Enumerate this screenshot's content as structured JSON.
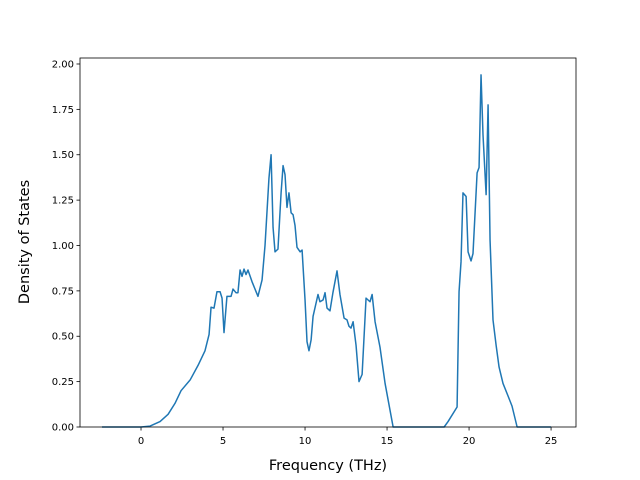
{
  "chart_data": {
    "type": "line",
    "xlabel": "Frequency (THz)",
    "ylabel": "Density of States",
    "x": [
      -2.38,
      0,
      0.55,
      1.16,
      1.65,
      2.07,
      2.44,
      3.0,
      3.48,
      3.9,
      4.15,
      4.27,
      4.45,
      4.63,
      4.82,
      4.94,
      5.06,
      5.24,
      5.49,
      5.61,
      5.79,
      5.91,
      6.04,
      6.16,
      6.28,
      6.4,
      6.52,
      6.77,
      7.13,
      7.38,
      7.56,
      7.8,
      7.93,
      8.05,
      8.17,
      8.35,
      8.54,
      8.66,
      8.78,
      8.9,
      9.02,
      9.15,
      9.27,
      9.39,
      9.51,
      9.7,
      9.82,
      10.0,
      10.12,
      10.24,
      10.37,
      10.49,
      10.79,
      10.91,
      11.1,
      11.22,
      11.34,
      11.52,
      11.7,
      11.95,
      12.13,
      12.38,
      12.56,
      12.68,
      12.8,
      12.93,
      13.11,
      13.29,
      13.48,
      13.72,
      13.96,
      14.09,
      14.27,
      14.57,
      14.88,
      15.37,
      18.48,
      18.72,
      19.27,
      19.39,
      19.51,
      19.63,
      19.82,
      19.94,
      20.12,
      20.24,
      20.49,
      20.61,
      20.73,
      20.85,
      21.04,
      21.16,
      21.28,
      21.46,
      21.65,
      21.83,
      22.07,
      22.38,
      22.62,
      22.93,
      25
    ],
    "series": [
      {
        "name": "DOS",
        "color": "#1f77b4",
        "values": [
          0,
          0,
          0.005,
          0.03,
          0.07,
          0.13,
          0.2,
          0.26,
          0.34,
          0.42,
          0.51,
          0.66,
          0.655,
          0.745,
          0.745,
          0.71,
          0.52,
          0.72,
          0.72,
          0.76,
          0.74,
          0.74,
          0.865,
          0.83,
          0.87,
          0.84,
          0.865,
          0.8,
          0.72,
          0.81,
          1.0,
          1.37,
          1.5,
          1.1,
          0.965,
          0.98,
          1.29,
          1.44,
          1.39,
          1.21,
          1.29,
          1.18,
          1.17,
          1.11,
          0.99,
          0.965,
          0.975,
          0.7,
          0.47,
          0.42,
          0.48,
          0.61,
          0.73,
          0.69,
          0.7,
          0.74,
          0.655,
          0.64,
          0.74,
          0.86,
          0.73,
          0.6,
          0.59,
          0.555,
          0.545,
          0.58,
          0.45,
          0.25,
          0.29,
          0.71,
          0.69,
          0.73,
          0.58,
          0.44,
          0.24,
          0,
          0,
          0.03,
          0.11,
          0.745,
          0.91,
          1.29,
          1.27,
          0.965,
          0.915,
          0.955,
          1.4,
          1.43,
          1.94,
          1.61,
          1.28,
          1.775,
          1.03,
          0.59,
          0.45,
          0.33,
          0.24,
          0.17,
          0.115,
          0,
          0
        ]
      }
    ],
    "xlim": [
      -3.72,
      26.52
    ],
    "ylim": [
      0,
      2.033
    ],
    "xticks": [
      0,
      5,
      10,
      15,
      20,
      25
    ],
    "yticks": [
      {
        "value": 0,
        "label": "0.00"
      },
      {
        "value": 0.25,
        "label": "0.25"
      },
      {
        "value": 0.5,
        "label": "0.50"
      },
      {
        "value": 0.75,
        "label": "0.75"
      },
      {
        "value": 1,
        "label": "1.00"
      },
      {
        "value": 1.25,
        "label": "1.25"
      },
      {
        "value": 1.5,
        "label": "1.50"
      },
      {
        "value": 1.75,
        "label": "1.75"
      },
      {
        "value": 2,
        "label": "2.00"
      }
    ]
  }
}
